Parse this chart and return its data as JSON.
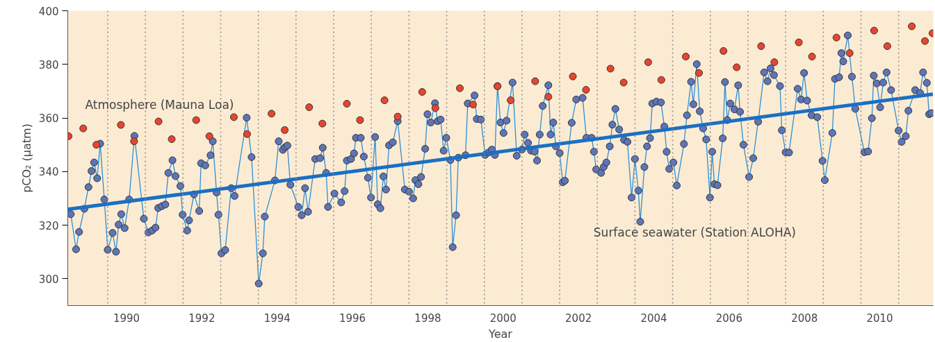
{
  "chart_data": {
    "type": "line",
    "xlabel": "Year",
    "ylabel": "pCO₂ (µatm)",
    "xlim": [
      1988.94,
      2011.92
    ],
    "ylim": [
      290,
      400
    ],
    "yticks": [
      300,
      320,
      340,
      360,
      380,
      400
    ],
    "xticks": [
      {
        "value": 1990.5,
        "label": "1990"
      },
      {
        "value": 1992.5,
        "label": "1992"
      },
      {
        "value": 1994.5,
        "label": "1994"
      },
      {
        "value": 1996.5,
        "label": "1996"
      },
      {
        "value": 1998.5,
        "label": "1998"
      },
      {
        "value": 2000.5,
        "label": "2000"
      },
      {
        "value": 2002.5,
        "label": "2002"
      },
      {
        "value": 2004.5,
        "label": "2004"
      },
      {
        "value": 2006.5,
        "label": "2006"
      },
      {
        "value": 2008.5,
        "label": "2008"
      },
      {
        "value": 2010.5,
        "label": "2010"
      }
    ],
    "grid": false,
    "marker": "circle",
    "line_style": "solid",
    "ref_lines": [
      {
        "axis": "x",
        "value": 1990,
        "line_style": "dotted",
        "color": "#888888"
      },
      {
        "axis": "x",
        "value": 1991,
        "line_style": "dotted",
        "color": "#888888"
      },
      {
        "axis": "x",
        "value": 1992,
        "line_style": "dotted",
        "color": "#888888"
      },
      {
        "axis": "x",
        "value": 1993,
        "line_style": "dotted",
        "color": "#888888"
      },
      {
        "axis": "x",
        "value": 1994,
        "line_style": "dotted",
        "color": "#888888"
      },
      {
        "axis": "x",
        "value": 1995,
        "line_style": "dotted",
        "color": "#888888"
      },
      {
        "axis": "x",
        "value": 1996,
        "line_style": "dotted",
        "color": "#888888"
      },
      {
        "axis": "x",
        "value": 1997,
        "line_style": "dotted",
        "color": "#888888"
      },
      {
        "axis": "x",
        "value": 1998,
        "line_style": "dotted",
        "color": "#888888"
      },
      {
        "axis": "x",
        "value": 1999,
        "line_style": "dotted",
        "color": "#888888"
      },
      {
        "axis": "x",
        "value": 2000,
        "line_style": "dotted",
        "color": "#888888"
      },
      {
        "axis": "x",
        "value": 2001,
        "line_style": "dotted",
        "color": "#888888"
      },
      {
        "axis": "x",
        "value": 2002,
        "line_style": "dotted",
        "color": "#888888"
      },
      {
        "axis": "x",
        "value": 2003,
        "line_style": "dotted",
        "color": "#888888"
      },
      {
        "axis": "x",
        "value": 2004,
        "line_style": "dotted",
        "color": "#888888"
      },
      {
        "axis": "x",
        "value": 2005,
        "line_style": "dotted",
        "color": "#888888"
      },
      {
        "axis": "x",
        "value": 2006,
        "line_style": "dotted",
        "color": "#888888"
      },
      {
        "axis": "x",
        "value": 2007,
        "line_style": "dotted",
        "color": "#888888"
      },
      {
        "axis": "x",
        "value": 2008,
        "line_style": "dotted",
        "color": "#888888"
      },
      {
        "axis": "x",
        "value": 2009,
        "line_style": "dotted",
        "color": "#888888"
      },
      {
        "axis": "x",
        "value": 2010,
        "line_style": "dotted",
        "color": "#888888"
      },
      {
        "axis": "x",
        "value": 2011,
        "line_style": "dotted",
        "color": "#888888"
      }
    ],
    "series": [
      {
        "name": "Atmosphere (Mauna Loa)",
        "type": "scatter",
        "color": "#e8452c",
        "x": [
          1988.96,
          1989.35,
          1989.7,
          1990.35,
          1990.7,
          1991.35,
          1991.7,
          1992.35,
          1992.7,
          1993.35,
          1993.7,
          1994.35,
          1994.7,
          1995.35,
          1995.7,
          1996.35,
          1996.7,
          1997.35,
          1997.7,
          1998.35,
          1998.7,
          1999.35,
          1999.7,
          2000.35,
          2000.7,
          2001.35,
          2001.7,
          2002.35,
          2002.7,
          2003.35,
          2003.7,
          2004.35,
          2004.7,
          2005.35,
          2005.7,
          2006.35,
          2006.7,
          2007.35,
          2007.7,
          2008.35,
          2008.7,
          2009.35,
          2009.7,
          2010.35,
          2010.7,
          2011.35,
          2011.7,
          2011.9
        ],
        "values": [
          353.2,
          356.1,
          350.0,
          357.4,
          351.3,
          358.7,
          352.1,
          359.2,
          353.2,
          360.3,
          354.0,
          361.6,
          355.5,
          364.0,
          357.9,
          365.3,
          359.2,
          366.6,
          360.5,
          369.7,
          363.7,
          371.1,
          365.0,
          371.8,
          366.6,
          373.7,
          367.9,
          375.5,
          370.5,
          378.4,
          373.2,
          380.8,
          374.2,
          382.9,
          376.8,
          385.0,
          378.9,
          386.8,
          380.8,
          388.2,
          382.9,
          390.0,
          384.2,
          392.6,
          386.8,
          394.2,
          388.7,
          391.6
        ]
      },
      {
        "name": "Surface seawater (Station ALOHA)",
        "color": "#2b8fd6",
        "x": [
          1989.02,
          1989.16,
          1989.24,
          1989.38,
          1989.49,
          1989.57,
          1989.64,
          1989.72,
          1989.8,
          1989.91,
          1990.0,
          1990.13,
          1990.22,
          1990.29,
          1990.36,
          1990.45,
          1990.57,
          1990.71,
          1990.96,
          1991.08,
          1991.18,
          1991.27,
          1991.34,
          1991.44,
          1991.53,
          1991.61,
          1991.72,
          1991.8,
          1991.93,
          1991.99,
          1992.11,
          1992.16,
          1992.29,
          1992.43,
          1992.48,
          1992.59,
          1992.73,
          1992.79,
          1992.89,
          1992.94,
          1993.02,
          1993.12,
          1993.28,
          1993.37,
          1993.69,
          1993.82,
          1994.01,
          1994.12,
          1994.17,
          1994.44,
          1994.54,
          1994.65,
          1994.71,
          1994.77,
          1994.85,
          1995.06,
          1995.15,
          1995.24,
          1995.32,
          1995.51,
          1995.64,
          1995.71,
          1995.8,
          1995.85,
          1996.02,
          1996.2,
          1996.29,
          1996.35,
          1996.46,
          1996.54,
          1996.59,
          1996.72,
          1996.8,
          1996.91,
          1996.99,
          1997.1,
          1997.17,
          1997.24,
          1997.32,
          1997.39,
          1997.47,
          1997.57,
          1997.7,
          1997.89,
          1998.0,
          1998.11,
          1998.17,
          1998.25,
          1998.32,
          1998.43,
          1998.49,
          1998.58,
          1998.69,
          1998.76,
          1998.84,
          1998.92,
          1998.99,
          1999.1,
          1999.16,
          1999.25,
          1999.31,
          1999.5,
          1999.56,
          1999.74,
          1999.8,
          1999.91,
          2000.02,
          2000.11,
          2000.2,
          2000.28,
          2000.35,
          2000.43,
          2000.51,
          2000.59,
          2000.75,
          2000.86,
          2001.0,
          2001.07,
          2001.16,
          2001.24,
          2001.33,
          2001.4,
          2001.47,
          2001.55,
          2001.7,
          2001.76,
          2001.83,
          2001.9,
          2002.0,
          2002.08,
          2002.14,
          2002.32,
          2002.44,
          2002.61,
          2002.71,
          2002.85,
          2002.91,
          2002.97,
          2003.1,
          2003.17,
          2003.24,
          2003.33,
          2003.4,
          2003.48,
          2003.58,
          2003.71,
          2003.8,
          2003.91,
          2004.0,
          2004.09,
          2004.14,
          2004.25,
          2004.32,
          2004.4,
          2004.46,
          2004.57,
          2004.69,
          2004.78,
          2004.84,
          2004.91,
          2005.02,
          2005.11,
          2005.3,
          2005.38,
          2005.49,
          2005.55,
          2005.64,
          2005.72,
          2005.81,
          2005.89,
          2005.99,
          2006.05,
          2006.11,
          2006.19,
          2006.33,
          2006.39,
          2006.45,
          2006.53,
          2006.64,
          2006.74,
          2006.79,
          2006.88,
          2007.03,
          2007.14,
          2007.27,
          2007.43,
          2007.52,
          2007.6,
          2007.69,
          2007.85,
          2007.9,
          2008.0,
          2008.09,
          2008.32,
          2008.41,
          2008.49,
          2008.57,
          2008.69,
          2008.84,
          2008.98,
          2009.04,
          2009.24,
          2009.31,
          2009.42,
          2009.48,
          2009.53,
          2009.65,
          2009.76,
          2009.85,
          2010.09,
          2010.19,
          2010.29,
          2010.34,
          2010.42,
          2010.51,
          2010.59,
          2010.68,
          2010.8,
          2011.0,
          2011.08,
          2011.19,
          2011.26,
          2011.44,
          2011.57,
          2011.65,
          2011.75,
          2011.81,
          2011.87
        ],
        "values": [
          324.1,
          311.0,
          317.5,
          326.1,
          334.2,
          340.2,
          343.4,
          337.5,
          350.4,
          329.6,
          310.8,
          317.1,
          310.1,
          320.2,
          324.1,
          318.9,
          329.6,
          353.3,
          322.4,
          317.3,
          318.0,
          319.1,
          326.4,
          327.1,
          327.7,
          339.5,
          344.2,
          338.3,
          334.6,
          323.9,
          318.0,
          321.8,
          331.5,
          325.3,
          343.1,
          342.3,
          346.1,
          351.3,
          332.2,
          323.9,
          309.5,
          310.7,
          333.8,
          330.9,
          360.1,
          345.4,
          298.2,
          309.5,
          323.2,
          336.7,
          351.3,
          348.1,
          349.1,
          349.7,
          335.1,
          326.8,
          323.7,
          333.8,
          325.0,
          344.7,
          345.0,
          348.9,
          339.5,
          326.8,
          331.8,
          328.5,
          332.7,
          344.1,
          344.7,
          346.8,
          352.6,
          352.6,
          345.6,
          337.7,
          330.3,
          352.9,
          327.8,
          326.3,
          338.2,
          333.3,
          349.8,
          350.9,
          358.8,
          333.3,
          332.5,
          330.0,
          336.8,
          335.3,
          338.0,
          348.5,
          361.4,
          358.3,
          365.5,
          358.8,
          359.4,
          347.8,
          352.6,
          344.3,
          311.8,
          323.7,
          345.2,
          346.1,
          365.4,
          368.4,
          359.6,
          359.4,
          346.2,
          347.1,
          348.2,
          346.2,
          371.9,
          358.3,
          354.4,
          359.0,
          373.2,
          345.9,
          348.2,
          353.8,
          350.7,
          347.8,
          347.5,
          344.1,
          353.8,
          364.5,
          372.2,
          353.8,
          358.3,
          349.4,
          346.9,
          336.0,
          336.6,
          358.2,
          366.9,
          367.5,
          352.6,
          352.6,
          347.4,
          340.8,
          339.5,
          341.7,
          343.4,
          349.4,
          357.5,
          363.4,
          355.7,
          351.8,
          351.1,
          330.3,
          344.7,
          332.9,
          321.3,
          341.7,
          349.4,
          352.5,
          365.4,
          366.1,
          365.8,
          356.8,
          347.4,
          341.0,
          343.4,
          334.8,
          350.3,
          361.0,
          373.5,
          365.1,
          380.1,
          362.5,
          356.1,
          352.0,
          330.3,
          347.4,
          335.3,
          334.9,
          352.4,
          373.4,
          359.2,
          365.4,
          363.2,
          372.2,
          362.3,
          350.0,
          338.0,
          345.0,
          358.6,
          377.0,
          373.7,
          378.5,
          376.0,
          371.9,
          355.4,
          347.2,
          347.1,
          370.9,
          366.9,
          376.8,
          366.5,
          361.0,
          360.3,
          344.0,
          336.8,
          354.4,
          374.6,
          375.2,
          384.2,
          381.1,
          390.8,
          375.4,
          363.4,
          347.2,
          347.5,
          359.9,
          375.8,
          372.9,
          364.0,
          373.2,
          377.0,
          370.4,
          355.3,
          351.1,
          353.2,
          362.7,
          370.4,
          369.3,
          377.0,
          373.1,
          361.4,
          361.8
        ]
      },
      {
        "color": "#1a6fc4",
        "marker": "none",
        "x": [
          1988.94,
          2011.91
        ],
        "values": [
          325.9,
          368.9
        ]
      }
    ]
  }
}
